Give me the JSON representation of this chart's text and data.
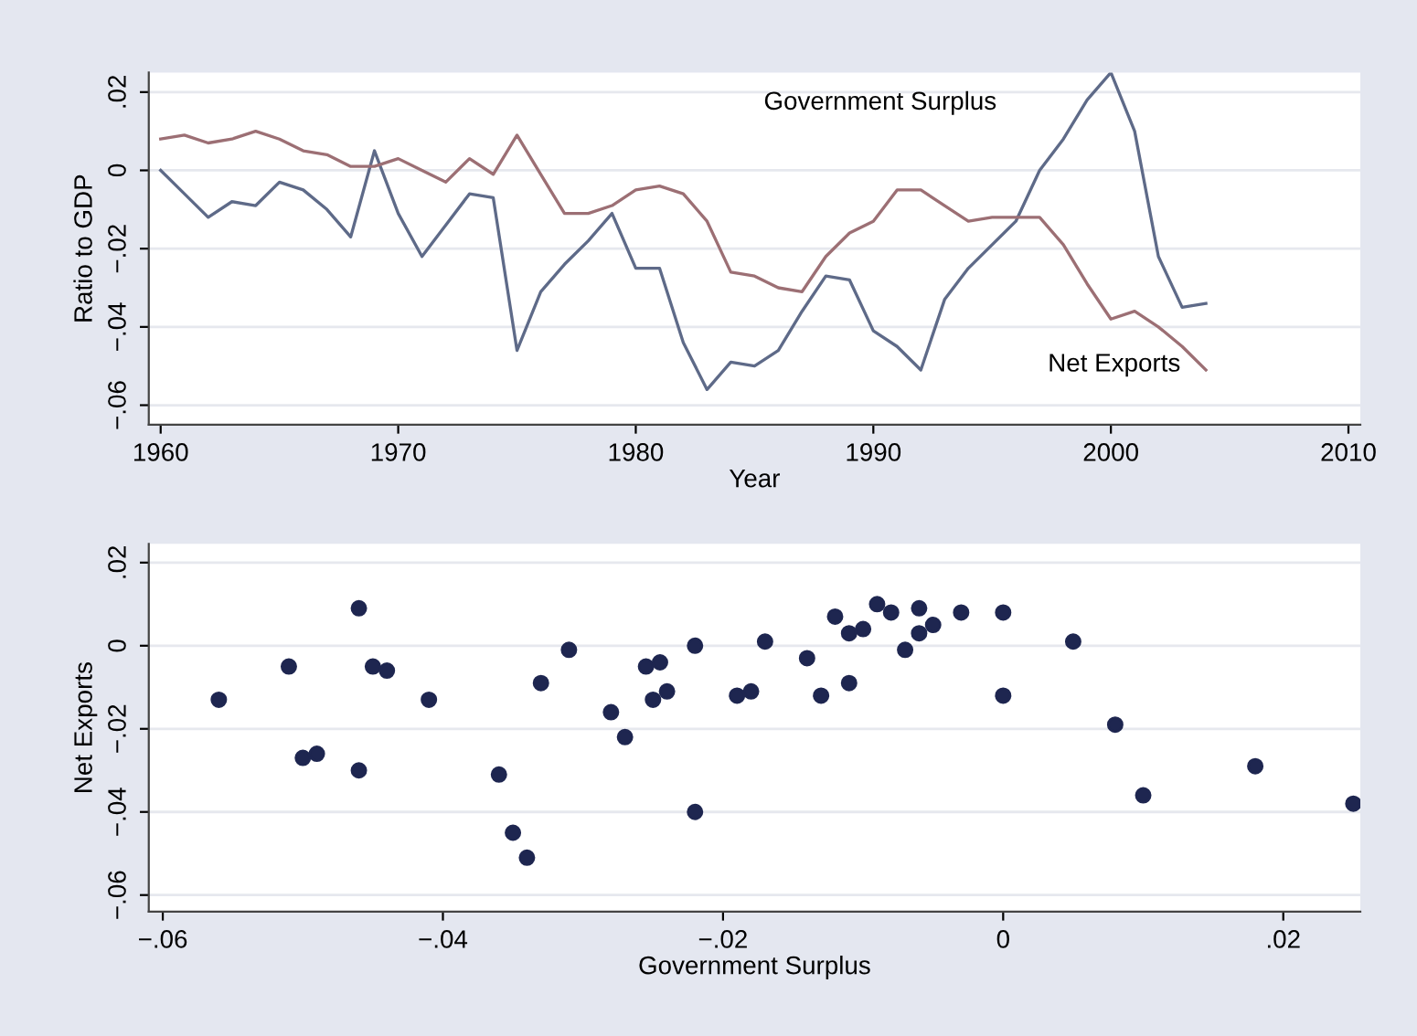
{
  "chart_data": [
    {
      "type": "line",
      "xlabel": "Year",
      "ylabel": "Ratio to GDP",
      "x": [
        1960,
        1961,
        1962,
        1963,
        1964,
        1965,
        1966,
        1967,
        1968,
        1969,
        1970,
        1971,
        1972,
        1973,
        1974,
        1975,
        1976,
        1977,
        1978,
        1979,
        1980,
        1981,
        1982,
        1983,
        1984,
        1985,
        1986,
        1987,
        1988,
        1989,
        1990,
        1991,
        1992,
        1993,
        1994,
        1995,
        1996,
        1997,
        1998,
        1999,
        2000,
        2001,
        2002,
        2003,
        2004
      ],
      "series": [
        {
          "name": "Government Surplus",
          "color": "#5e6a88",
          "values": [
            0.0,
            -0.006,
            -0.012,
            -0.008,
            -0.009,
            -0.003,
            -0.005,
            -0.01,
            -0.017,
            0.005,
            -0.011,
            -0.022,
            -0.014,
            -0.006,
            -0.007,
            -0.046,
            -0.031,
            -0.024,
            -0.018,
            -0.011,
            -0.025,
            -0.025,
            -0.044,
            -0.056,
            -0.049,
            -0.05,
            -0.046,
            -0.036,
            -0.027,
            -0.028,
            -0.041,
            -0.045,
            -0.051,
            -0.033,
            -0.025,
            -0.019,
            -0.013,
            0.0,
            0.008,
            0.018,
            0.025,
            0.01,
            -0.022,
            -0.035,
            -0.034
          ]
        },
        {
          "name": "Net Exports",
          "color": "#9c6f74",
          "values": [
            0.008,
            0.009,
            0.007,
            0.008,
            0.01,
            0.008,
            0.005,
            0.004,
            0.001,
            0.001,
            0.003,
            0.0,
            -0.003,
            0.003,
            -0.001,
            0.009,
            -0.001,
            -0.011,
            -0.011,
            -0.009,
            -0.005,
            -0.004,
            -0.006,
            -0.013,
            -0.026,
            -0.027,
            -0.03,
            -0.031,
            -0.022,
            -0.016,
            -0.013,
            -0.005,
            -0.005,
            -0.009,
            -0.013,
            -0.012,
            -0.012,
            -0.012,
            -0.019,
            -0.029,
            -0.038,
            -0.036,
            -0.04,
            -0.045,
            -0.051
          ]
        }
      ],
      "xlim": [
        1959.5,
        2010.5
      ],
      "xticks": [
        1960,
        1970,
        1980,
        1990,
        2000,
        2010
      ],
      "ylim": [
        -0.065,
        0.025
      ],
      "yticks": [
        {
          "value": 0.02,
          "label": ".02"
        },
        {
          "value": 0,
          "label": "0"
        },
        {
          "value": -0.02,
          "label": "−.02"
        },
        {
          "value": -0.04,
          "label": "−.04"
        },
        {
          "value": -0.06,
          "label": "−.06"
        }
      ],
      "grid": "y"
    },
    {
      "type": "scatter",
      "xlabel": "Government Surplus",
      "ylabel": "Net Exports",
      "series": [
        {
          "color": "#1e2650",
          "x": [
            0.0,
            -0.006,
            -0.012,
            -0.008,
            -0.009,
            -0.003,
            -0.005,
            -0.01,
            -0.017,
            0.005,
            -0.011,
            -0.022,
            -0.014,
            -0.006,
            -0.007,
            -0.046,
            -0.031,
            -0.024,
            -0.018,
            -0.011,
            -0.0255,
            -0.0245,
            -0.044,
            -0.056,
            -0.049,
            -0.05,
            -0.046,
            -0.036,
            -0.027,
            -0.028,
            -0.041,
            -0.045,
            -0.051,
            -0.033,
            -0.025,
            -0.019,
            -0.013,
            0.0,
            0.008,
            0.018,
            0.025,
            0.01,
            -0.022,
            -0.035,
            -0.034
          ],
          "values": [
            0.008,
            0.009,
            0.007,
            0.008,
            0.01,
            0.008,
            0.005,
            0.004,
            0.001,
            0.001,
            0.003,
            0.0,
            -0.003,
            0.003,
            -0.001,
            0.009,
            -0.001,
            -0.011,
            -0.011,
            -0.009,
            -0.005,
            -0.004,
            -0.006,
            -0.013,
            -0.026,
            -0.027,
            -0.03,
            -0.031,
            -0.022,
            -0.016,
            -0.013,
            -0.005,
            -0.005,
            -0.009,
            -0.013,
            -0.012,
            -0.012,
            -0.012,
            -0.019,
            -0.029,
            -0.038,
            -0.036,
            -0.04,
            -0.045,
            -0.051
          ]
        }
      ],
      "xlim": [
        -0.061,
        0.0255
      ],
      "xticks": [
        {
          "value": -0.06,
          "label": "−.06"
        },
        {
          "value": -0.04,
          "label": "−.04"
        },
        {
          "value": -0.02,
          "label": "−.02"
        },
        {
          "value": 0,
          "label": "0"
        },
        {
          "value": 0.02,
          "label": ".02"
        }
      ],
      "ylim": [
        -0.064,
        0.0245
      ],
      "yticks": [
        {
          "value": 0.02,
          "label": ".02"
        },
        {
          "value": 0,
          "label": "0"
        },
        {
          "value": -0.02,
          "label": "−.02"
        },
        {
          "value": -0.04,
          "label": "−.04"
        },
        {
          "value": -0.06,
          "label": "−.06"
        }
      ],
      "grid": "y",
      "marker": "circle"
    }
  ]
}
